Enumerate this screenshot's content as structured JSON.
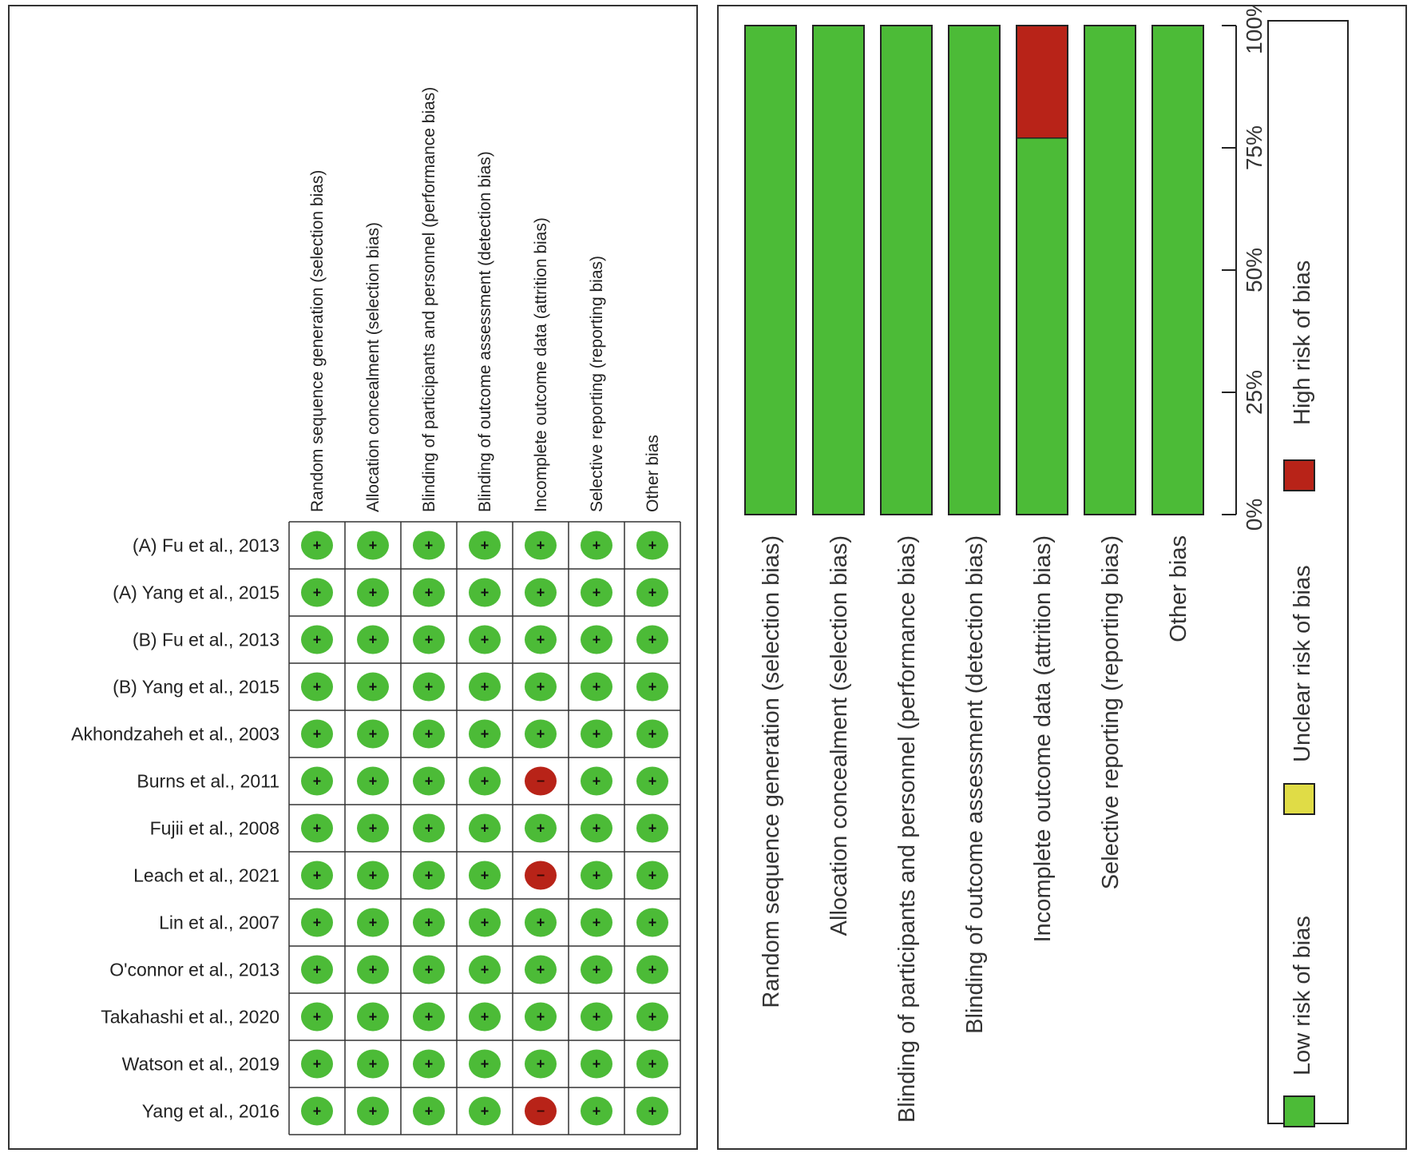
{
  "colors": {
    "low": "#4cbb37",
    "low_dark": "#2e8b1f",
    "unclear": "#e0dc46",
    "high": "#b82318",
    "grid": "#333333"
  },
  "domains": [
    "Random sequence generation (selection bias)",
    "Allocation concealment (selection bias)",
    "Blinding of participants and personnel (performance bias)",
    "Blinding of outcome assessment (detection bias)",
    "Incomplete outcome data (attrition bias)",
    "Selective reporting (reporting bias)",
    "Other bias"
  ],
  "studies": [
    {
      "name": "(A) Fu et al., 2013",
      "ratings": [
        "low",
        "low",
        "low",
        "low",
        "low",
        "low",
        "low"
      ]
    },
    {
      "name": "(A) Yang et al., 2015",
      "ratings": [
        "low",
        "low",
        "low",
        "low",
        "low",
        "low",
        "low"
      ]
    },
    {
      "name": "(B) Fu et al., 2013",
      "ratings": [
        "low",
        "low",
        "low",
        "low",
        "low",
        "low",
        "low"
      ]
    },
    {
      "name": "(B) Yang et al., 2015",
      "ratings": [
        "low",
        "low",
        "low",
        "low",
        "low",
        "low",
        "low"
      ]
    },
    {
      "name": "Akhondzaheh et al., 2003",
      "ratings": [
        "low",
        "low",
        "low",
        "low",
        "low",
        "low",
        "low"
      ]
    },
    {
      "name": "Burns et al., 2011",
      "ratings": [
        "low",
        "low",
        "low",
        "low",
        "high",
        "low",
        "low"
      ]
    },
    {
      "name": "Fujii et al., 2008",
      "ratings": [
        "low",
        "low",
        "low",
        "low",
        "low",
        "low",
        "low"
      ]
    },
    {
      "name": "Leach et al., 2021",
      "ratings": [
        "low",
        "low",
        "low",
        "low",
        "high",
        "low",
        "low"
      ]
    },
    {
      "name": "Lin et al., 2007",
      "ratings": [
        "low",
        "low",
        "low",
        "low",
        "low",
        "low",
        "low"
      ]
    },
    {
      "name": "O'connor et al., 2013",
      "ratings": [
        "low",
        "low",
        "low",
        "low",
        "low",
        "low",
        "low"
      ]
    },
    {
      "name": "Takahashi et al., 2020",
      "ratings": [
        "low",
        "low",
        "low",
        "low",
        "low",
        "low",
        "low"
      ]
    },
    {
      "name": "Watson et al., 2019",
      "ratings": [
        "low",
        "low",
        "low",
        "low",
        "low",
        "low",
        "low"
      ]
    },
    {
      "name": "Yang et al., 2016",
      "ratings": [
        "low",
        "low",
        "low",
        "low",
        "high",
        "low",
        "low"
      ]
    }
  ],
  "symbols": {
    "low": "+",
    "high": "−"
  },
  "chart_data": [
    {
      "type": "table",
      "columns": [
        "Random sequence generation (selection bias)",
        "Allocation concealment (selection bias)",
        "Blinding of participants and personnel (performance bias)",
        "Blinding of outcome assessment (detection bias)",
        "Incomplete outcome data (attrition bias)",
        "Selective reporting (reporting bias)",
        "Other bias"
      ],
      "rows": [
        "(A) Fu et al., 2013",
        "(A) Yang et al., 2015",
        "(B) Fu et al., 2013",
        "(B) Yang et al., 2015",
        "Akhondzaheh et al., 2003",
        "Burns et al., 2011",
        "Fujii et al., 2008",
        "Leach et al., 2021",
        "Lin et al., 2007",
        "O'connor et al., 2013",
        "Takahashi et al., 2020",
        "Watson et al., 2019",
        "Yang et al., 2016"
      ]
    },
    {
      "type": "bar",
      "stacked": true,
      "categories": [
        "Random sequence generation (selection bias)",
        "Allocation concealment (selection bias)",
        "Blinding of participants and personnel (performance bias)",
        "Blinding of outcome assessment (detection bias)",
        "Incomplete outcome data (attrition bias)",
        "Selective reporting (reporting bias)",
        "Other bias"
      ],
      "series": [
        {
          "name": "Low risk of bias",
          "values": [
            100,
            100,
            100,
            100,
            77,
            100,
            100
          ]
        },
        {
          "name": "Unclear risk of bias",
          "values": [
            0,
            0,
            0,
            0,
            0,
            0,
            0
          ]
        },
        {
          "name": "High risk of bias",
          "values": [
            0,
            0,
            0,
            0,
            23,
            0,
            0
          ]
        }
      ],
      "ticks": [
        "0%",
        "25%",
        "50%",
        "75%",
        "100%"
      ],
      "ylim": [
        0,
        100
      ],
      "legend": [
        "Low risk of bias",
        "Unclear risk of bias",
        "High risk of bias"
      ],
      "legend_position": "right"
    }
  ]
}
